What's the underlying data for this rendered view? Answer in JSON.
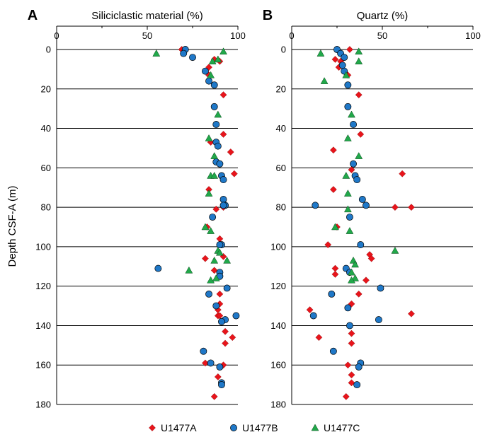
{
  "figure": {
    "ylabel": "Depth CSF-A (m)",
    "legend": [
      {
        "name": "U1477A",
        "marker": "diamond",
        "color": "#e8141b"
      },
      {
        "name": "U1477B",
        "marker": "circle",
        "color": "#1f78c8"
      },
      {
        "name": "U1477C",
        "marker": "triangle",
        "color": "#21a84a"
      }
    ]
  },
  "chart_data": [
    {
      "type": "scatter",
      "panel_label": "A",
      "title": "Siliciclastic material (%)",
      "xlim": [
        0,
        100
      ],
      "ylim": [
        0,
        180
      ],
      "y_inverted": true,
      "xticks": [
        0,
        50,
        100
      ],
      "yticks": [
        0,
        20,
        40,
        60,
        80,
        100,
        120,
        140,
        160,
        180
      ],
      "grid": "horizontal",
      "legend_position": "bottom",
      "series": [
        {
          "name": "U1477A",
          "marker": "diamond",
          "color": "#e8141b",
          "x": [
            69,
            87,
            90,
            84,
            84,
            92,
            92,
            85,
            96,
            98,
            84,
            92,
            88,
            83,
            90,
            82,
            92,
            87,
            90,
            90,
            90,
            89,
            89,
            90,
            93,
            93,
            97,
            92,
            82,
            89,
            87
          ],
          "y": [
            0,
            5,
            6,
            9,
            13,
            23,
            43,
            47,
            52,
            63,
            71,
            80,
            81,
            90,
            96,
            106,
            105,
            112,
            115,
            124,
            129,
            132,
            135,
            135,
            143,
            149,
            146,
            160,
            159,
            166,
            176
          ]
        },
        {
          "name": "U1477B",
          "marker": "circle",
          "color": "#1f78c8",
          "x": [
            71,
            70,
            75,
            82,
            84,
            87,
            87,
            88,
            88,
            89,
            88,
            90,
            91,
            92,
            92,
            93,
            92,
            86,
            91,
            90,
            56,
            90,
            90,
            94,
            84,
            88,
            99,
            93,
            91,
            81,
            85,
            90,
            91,
            91
          ],
          "y": [
            0,
            2,
            4,
            11,
            16,
            18,
            29,
            38,
            47,
            49,
            57,
            58,
            64,
            66,
            76,
            79,
            79,
            85,
            99,
            99,
            111,
            113,
            115,
            121,
            124,
            130,
            135,
            137,
            138,
            153,
            159,
            161,
            169,
            170
          ]
        },
        {
          "name": "U1477C",
          "marker": "triangle",
          "color": "#21a84a",
          "x": [
            55,
            92,
            86,
            89,
            85,
            89,
            84,
            87,
            85,
            87,
            84,
            82,
            85,
            89,
            90,
            94,
            87,
            73,
            88,
            85
          ],
          "y": [
            2,
            1,
            6,
            5,
            13,
            33,
            45,
            54,
            64,
            64,
            73,
            90,
            92,
            102,
            103,
            107,
            107,
            112,
            116,
            117
          ]
        }
      ]
    },
    {
      "type": "scatter",
      "panel_label": "B",
      "title": "Quartz (%)",
      "xlim": [
        0,
        100
      ],
      "ylim": [
        0,
        180
      ],
      "y_inverted": true,
      "xticks": [
        0,
        50,
        100
      ],
      "yticks": [
        0,
        20,
        40,
        60,
        80,
        100,
        120,
        140,
        160,
        180
      ],
      "grid": "horizontal",
      "legend_position": "bottom",
      "series": [
        {
          "name": "U1477A",
          "marker": "diamond",
          "color": "#e8141b",
          "x": [
            32,
            24,
            27,
            26,
            31,
            37,
            38,
            23,
            33,
            61,
            23,
            57,
            66,
            25,
            20,
            43,
            44,
            24,
            24,
            41,
            37,
            33,
            10,
            66,
            15,
            33,
            33,
            31,
            33,
            33,
            30
          ],
          "y": [
            0,
            5,
            6,
            9,
            13,
            23,
            43,
            51,
            61,
            63,
            71,
            80,
            80,
            90,
            99,
            104,
            106,
            111,
            114,
            117,
            124,
            129,
            132,
            134,
            146,
            144,
            149,
            160,
            165,
            169,
            176
          ]
        },
        {
          "name": "U1477B",
          "marker": "circle",
          "color": "#1f78c8",
          "x": [
            25,
            27,
            29,
            29,
            28,
            31,
            31,
            34,
            34,
            35,
            36,
            39,
            41,
            13,
            32,
            38,
            30,
            32,
            49,
            22,
            31,
            12,
            48,
            32,
            23,
            38,
            37,
            36
          ],
          "y": [
            0,
            2,
            4,
            11,
            8,
            18,
            29,
            38,
            58,
            64,
            66,
            76,
            79,
            79,
            85,
            99,
            111,
            113,
            121,
            124,
            131,
            135,
            137,
            140,
            153,
            159,
            161,
            170
          ]
        },
        {
          "name": "U1477C",
          "marker": "triangle",
          "color": "#21a84a",
          "x": [
            16,
            37,
            37,
            30,
            18,
            33,
            31,
            37,
            30,
            31,
            31,
            32,
            24,
            34,
            57,
            35,
            33,
            35,
            33
          ],
          "y": [
            2,
            1,
            6,
            13,
            16,
            33,
            45,
            54,
            64,
            73,
            81,
            92,
            90,
            107,
            102,
            109,
            113,
            116,
            117
          ]
        }
      ]
    }
  ]
}
